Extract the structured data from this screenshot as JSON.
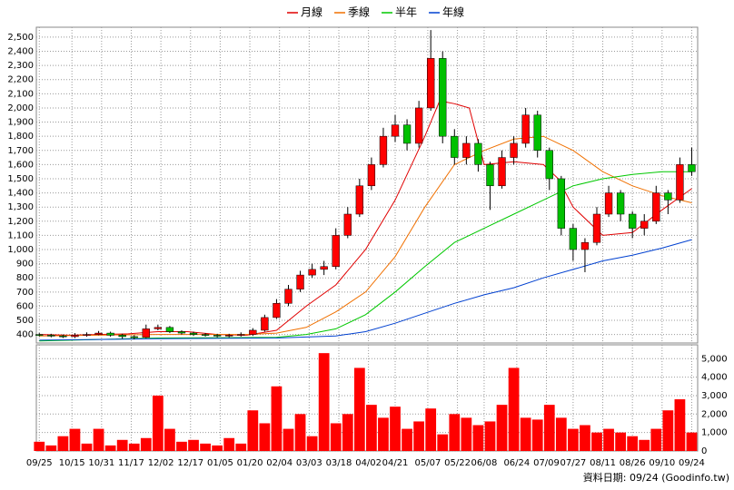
{
  "chart_data": {
    "type": "candlestick",
    "grid": true,
    "xlim": [
      -1,
      222
    ],
    "xticks": [
      {
        "value": 0,
        "label": "09/25"
      },
      {
        "value": 11,
        "label": "10/15"
      },
      {
        "value": 21,
        "label": "10/31"
      },
      {
        "value": 31,
        "label": "11/17"
      },
      {
        "value": 41,
        "label": "12/02"
      },
      {
        "value": 51,
        "label": "12/17"
      },
      {
        "value": 61,
        "label": "01/05"
      },
      {
        "value": 71,
        "label": "01/20"
      },
      {
        "value": 81,
        "label": "02/04"
      },
      {
        "value": 91,
        "label": "03/03"
      },
      {
        "value": 101,
        "label": "03/18"
      },
      {
        "value": 111,
        "label": "04/02"
      },
      {
        "value": 120,
        "label": "04/21"
      },
      {
        "value": 131,
        "label": "05/07"
      },
      {
        "value": 141,
        "label": "05/22"
      },
      {
        "value": 150,
        "label": "06/08"
      },
      {
        "value": 161,
        "label": "06/24"
      },
      {
        "value": 171,
        "label": "07/09"
      },
      {
        "value": 180,
        "label": "07/27"
      },
      {
        "value": 190,
        "label": "08/11"
      },
      {
        "value": 200,
        "label": "08/26"
      },
      {
        "value": 210,
        "label": "09/10"
      },
      {
        "value": 220,
        "label": "09/24"
      }
    ],
    "ylim": [
      340,
      2570
    ],
    "yticks": [
      400,
      500,
      600,
      700,
      800,
      900,
      {
        "value": 1000,
        "label": "1,000"
      },
      {
        "value": 1100,
        "label": "1,100"
      },
      {
        "value": 1200,
        "label": "1,200"
      },
      {
        "value": 1300,
        "label": "1,300"
      },
      {
        "value": 1400,
        "label": "1,400"
      },
      {
        "value": 1500,
        "label": "1,500"
      },
      {
        "value": 1600,
        "label": "1,600"
      },
      {
        "value": 1700,
        "label": "1,700"
      },
      {
        "value": 1800,
        "label": "1,800"
      },
      {
        "value": 1900,
        "label": "1,900"
      },
      {
        "value": 2000,
        "label": "2,000"
      },
      {
        "value": 2100,
        "label": "2,100"
      },
      {
        "value": 2200,
        "label": "2,200"
      },
      {
        "value": 2300,
        "label": "2,300"
      },
      {
        "value": 2400,
        "label": "2,400"
      },
      {
        "value": 2500,
        "label": "2,500"
      }
    ],
    "candles": {
      "up_color": "#ff0000",
      "down_color": "#00c000",
      "x": [
        0,
        4,
        8,
        12,
        16,
        20,
        24,
        28,
        32,
        36,
        40,
        44,
        48,
        52,
        56,
        60,
        64,
        68,
        72,
        76,
        80,
        84,
        88,
        92,
        96,
        100,
        104,
        108,
        112,
        116,
        120,
        124,
        128,
        132,
        136,
        140,
        144,
        148,
        152,
        156,
        160,
        164,
        168,
        172,
        176,
        180,
        184,
        188,
        192,
        196,
        200,
        204,
        208,
        212,
        216,
        220
      ],
      "open": [
        400,
        395,
        390,
        385,
        395,
        400,
        410,
        395,
        385,
        380,
        440,
        450,
        420,
        410,
        400,
        395,
        390,
        395,
        400,
        430,
        520,
        620,
        720,
        820,
        860,
        880,
        1100,
        1250,
        1450,
        1600,
        1800,
        1880,
        1750,
        2000,
        2350,
        1800,
        1650,
        1750,
        1600,
        1450,
        1650,
        1750,
        1950,
        1700,
        1500,
        1150,
        1000,
        1050,
        1250,
        1400,
        1250,
        1150,
        1200,
        1400,
        1350,
        1600
      ],
      "high": [
        410,
        405,
        400,
        410,
        415,
        425,
        420,
        405,
        395,
        470,
        470,
        460,
        430,
        420,
        410,
        405,
        405,
        415,
        445,
        540,
        650,
        750,
        850,
        900,
        920,
        1150,
        1300,
        1500,
        1650,
        1860,
        1950,
        1920,
        2050,
        2550,
        2400,
        1850,
        1800,
        1780,
        1620,
        1700,
        1800,
        2000,
        1980,
        1720,
        1520,
        1180,
        1080,
        1300,
        1450,
        1420,
        1270,
        1250,
        1450,
        1420,
        1650,
        1720
      ],
      "low": [
        385,
        380,
        375,
        375,
        385,
        395,
        385,
        370,
        365,
        375,
        430,
        410,
        400,
        390,
        385,
        380,
        380,
        385,
        390,
        420,
        510,
        600,
        700,
        800,
        820,
        860,
        1080,
        1230,
        1420,
        1580,
        1760,
        1700,
        1720,
        1980,
        1750,
        1600,
        1600,
        1550,
        1280,
        1430,
        1600,
        1720,
        1650,
        1420,
        1100,
        920,
        840,
        1030,
        1230,
        1200,
        1080,
        1100,
        1180,
        1250,
        1330,
        1520
      ],
      "close": [
        395,
        390,
        385,
        395,
        400,
        410,
        395,
        385,
        380,
        440,
        450,
        420,
        410,
        400,
        395,
        390,
        395,
        400,
        430,
        520,
        620,
        720,
        820,
        860,
        880,
        1100,
        1250,
        1450,
        1600,
        1800,
        1880,
        1750,
        2000,
        2350,
        1800,
        1650,
        1750,
        1600,
        1450,
        1650,
        1750,
        1950,
        1700,
        1500,
        1150,
        1000,
        1050,
        1250,
        1400,
        1250,
        1150,
        1200,
        1400,
        1350,
        1600,
        1550
      ]
    },
    "series": [
      {
        "name": "月線",
        "color": "#e00000",
        "x": [
          0,
          10,
          20,
          30,
          40,
          50,
          60,
          70,
          80,
          90,
          100,
          110,
          120,
          130,
          135,
          140,
          145,
          150,
          160,
          170,
          175,
          180,
          190,
          200,
          210,
          220
        ],
        "values": [
          400,
          395,
          400,
          405,
          420,
          420,
          400,
          395,
          430,
          600,
          750,
          1000,
          1350,
          1800,
          2050,
          2030,
          2000,
          1600,
          1620,
          1600,
          1500,
          1300,
          1100,
          1120,
          1280,
          1430
        ]
      },
      {
        "name": "季線",
        "color": "#f07000",
        "x": [
          0,
          40,
          70,
          80,
          90,
          100,
          110,
          120,
          130,
          140,
          150,
          160,
          170,
          180,
          190,
          200,
          210,
          220
        ],
        "values": [
          390,
          400,
          400,
          410,
          450,
          560,
          700,
          950,
          1300,
          1600,
          1700,
          1780,
          1800,
          1700,
          1550,
          1450,
          1380,
          1330
        ]
      },
      {
        "name": "半年",
        "color": "#00c800",
        "x": [
          0,
          40,
          80,
          90,
          100,
          110,
          120,
          130,
          140,
          150,
          160,
          170,
          180,
          190,
          200,
          210,
          220
        ],
        "values": [
          355,
          375,
          380,
          400,
          440,
          540,
          700,
          880,
          1050,
          1150,
          1250,
          1350,
          1450,
          1500,
          1530,
          1550,
          1550
        ]
      },
      {
        "name": "年線",
        "color": "#0040d0",
        "x": [
          0,
          40,
          80,
          100,
          110,
          120,
          130,
          140,
          150,
          160,
          170,
          180,
          190,
          200,
          210,
          220
        ],
        "values": [
          360,
          370,
          375,
          390,
          420,
          480,
          550,
          620,
          680,
          730,
          800,
          860,
          920,
          960,
          1010,
          1070
        ]
      }
    ],
    "volume": {
      "color": "#ff0000",
      "ylim": [
        0,
        5750
      ],
      "yticks": [
        0,
        {
          "value": 1000,
          "label": "1,000"
        },
        {
          "value": 2000,
          "label": "2,000"
        },
        {
          "value": 3000,
          "label": "3,000"
        },
        {
          "value": 4000,
          "label": "4,000"
        },
        {
          "value": 5000,
          "label": "5,000"
        }
      ],
      "values": [
        500,
        300,
        800,
        1200,
        400,
        1200,
        300,
        600,
        400,
        700,
        3000,
        1200,
        500,
        600,
        400,
        300,
        700,
        400,
        2200,
        1500,
        3500,
        1200,
        2000,
        800,
        5300,
        1500,
        2000,
        4500,
        2500,
        1800,
        2400,
        1200,
        1600,
        2300,
        900,
        2000,
        1800,
        1400,
        1600,
        2500,
        4500,
        1800,
        1700,
        2500,
        1800,
        1200,
        1400,
        1000,
        1200,
        1000,
        800,
        600,
        1200,
        2200,
        2800,
        1000
      ]
    },
    "footnote": "資料日期: 09/24 (Goodinfo.tw)"
  }
}
